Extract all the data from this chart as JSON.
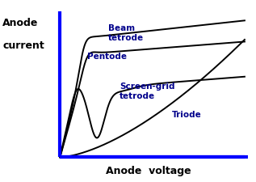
{
  "background_color": "#ffffff",
  "axis_color": "#0000ff",
  "curve_color": "#000000",
  "label_color": "#00008B",
  "xlabel": "Anode  voltage",
  "ylabel_line1": "Anode",
  "ylabel_line2": "current",
  "labels": {
    "beam_tetrode": "Beam\ntetrode",
    "pentode": "Pentode",
    "screen_grid": "Screen-grid\ntetrode",
    "triode": "Triode"
  },
  "figsize": [
    3.17,
    2.25
  ],
  "dpi": 100
}
